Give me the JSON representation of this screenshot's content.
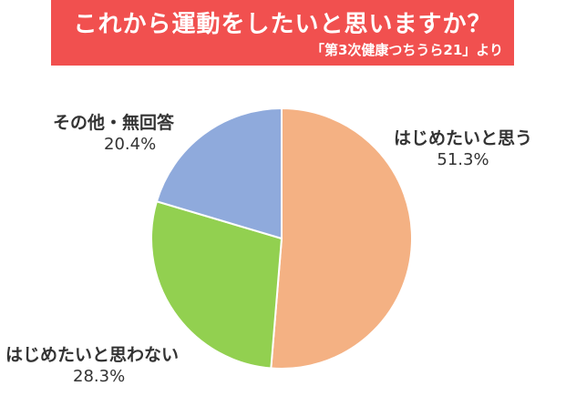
{
  "header": {
    "title": "これから運動をしたいと思いますか？",
    "subtitle": "「第3次健康つちうら21」より"
  },
  "colors": {
    "banner": "#f1504f",
    "slice_want": "#f4b183",
    "slice_not_want": "#92d050",
    "slice_other": "#8faadc"
  },
  "chart_data": {
    "type": "pie",
    "title": "これから運動をしたいと思いますか？",
    "subtitle": "「第3次健康つちうら21」より",
    "slices": [
      {
        "label": "はじめたいと思う",
        "value": 51.3,
        "value_label": "51.3%",
        "color": "#f4b183"
      },
      {
        "label": "はじめたいと思わない",
        "value": 28.3,
        "value_label": "28.3%",
        "color": "#92d050"
      },
      {
        "label": "その他・無回答",
        "value": 20.4,
        "value_label": "20.4%",
        "color": "#8faadc"
      }
    ]
  }
}
